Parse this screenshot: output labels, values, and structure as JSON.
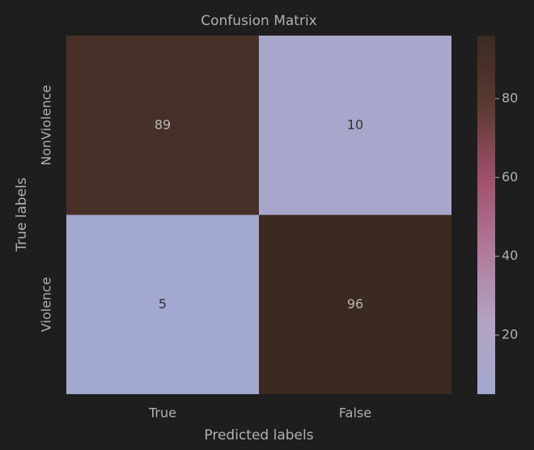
{
  "chart_data": {
    "type": "heatmap",
    "title": "Confusion Matrix",
    "xlabel": "Predicted labels",
    "ylabel": "True labels",
    "x_categories": [
      "True",
      "False"
    ],
    "y_categories": [
      "NonViolence",
      "Violence"
    ],
    "values": [
      [
        89,
        10
      ],
      [
        5,
        96
      ]
    ],
    "clim": [
      5,
      96
    ],
    "cticks": [
      20,
      40,
      60,
      80
    ],
    "colormap": [
      "#a3a8d0",
      "#b3a3c2",
      "#b07a9c",
      "#a0506c",
      "#5c3a32",
      "#3a2a20"
    ]
  }
}
